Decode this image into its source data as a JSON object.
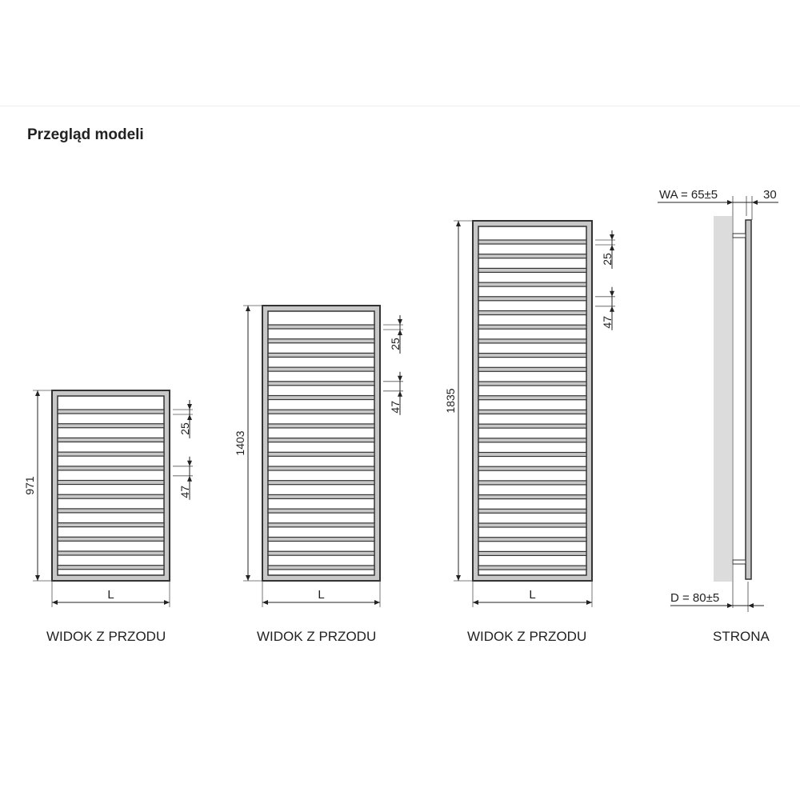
{
  "title": "Przegląd modeli",
  "models": [
    {
      "height_label": "971",
      "width_label": "L",
      "bar_dim": "25",
      "pitch_dim": "47",
      "view_label": "WIDOK Z PRZODU"
    },
    {
      "height_label": "1403",
      "width_label": "L",
      "bar_dim": "25",
      "pitch_dim": "47",
      "view_label": "WIDOK Z PRZODU"
    },
    {
      "height_label": "1835",
      "width_label": "L",
      "bar_dim": "25",
      "pitch_dim": "47",
      "view_label": "WIDOK Z PRZODU"
    }
  ],
  "side": {
    "wa_label": "WA = 65±5",
    "depth_label": "30",
    "d_label": "D = 80±5",
    "view_label": "STRONA"
  },
  "colors": {
    "frame": "#c8c8c8",
    "outline": "#333333",
    "wall": "#dcdcdc"
  }
}
